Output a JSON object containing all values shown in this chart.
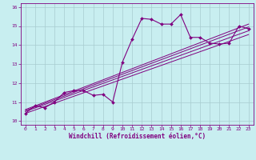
{
  "xlabel": "Windchill (Refroidissement éolien,°C)",
  "bg_color": "#c8eef0",
  "line_color": "#800080",
  "grid_color": "#a8ccd0",
  "xlim": [
    -0.5,
    23.5
  ],
  "ylim": [
    9.8,
    16.2
  ],
  "xticks": [
    0,
    1,
    2,
    3,
    4,
    5,
    6,
    7,
    8,
    9,
    10,
    11,
    12,
    13,
    14,
    15,
    16,
    17,
    18,
    19,
    20,
    21,
    22,
    23
  ],
  "yticks": [
    10,
    11,
    12,
    13,
    14,
    15,
    16
  ],
  "main_x": [
    0,
    1,
    2,
    3,
    4,
    5,
    6,
    7,
    8,
    9,
    10,
    11,
    12,
    13,
    14,
    15,
    16,
    17,
    18,
    19,
    20,
    21,
    22,
    23
  ],
  "main_y": [
    10.4,
    10.8,
    10.7,
    11.0,
    11.5,
    11.6,
    11.6,
    11.35,
    11.4,
    11.0,
    13.1,
    14.3,
    15.4,
    15.35,
    15.1,
    15.1,
    15.6,
    14.4,
    14.4,
    14.1,
    14.05,
    14.1,
    15.0,
    14.85
  ],
  "trend_lines": [
    {
      "x": [
        0,
        23
      ],
      "y": [
        10.4,
        14.55
      ]
    },
    {
      "x": [
        0,
        23
      ],
      "y": [
        10.5,
        14.75
      ]
    },
    {
      "x": [
        0,
        23
      ],
      "y": [
        10.55,
        14.95
      ]
    },
    {
      "x": [
        0,
        23
      ],
      "y": [
        10.6,
        15.1
      ]
    }
  ]
}
